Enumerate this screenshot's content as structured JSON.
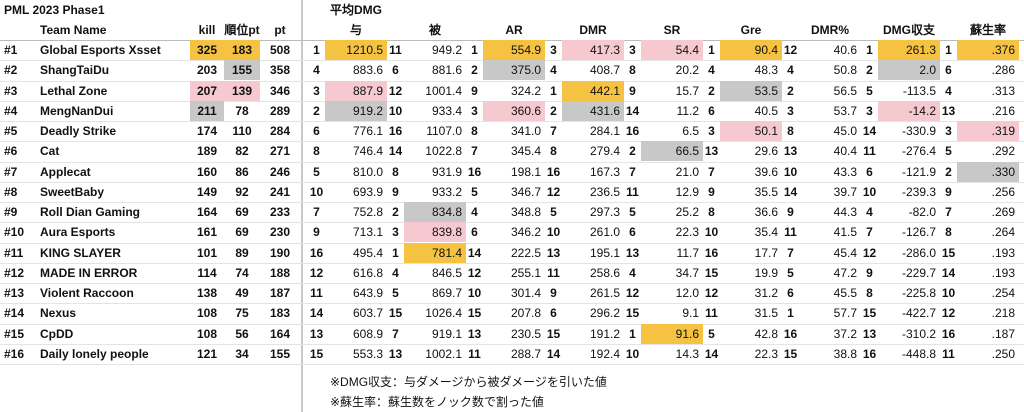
{
  "title": "PML 2023 Phase1",
  "group_title": "平均DMG",
  "left_headers": [
    "Team Name",
    "kill",
    "順位pt",
    "pt"
  ],
  "stat_headers": [
    "与",
    "被",
    "AR",
    "DMR",
    "SR",
    "Gre",
    "DMR%",
    "DMG収支",
    "蘇生率"
  ],
  "highlight_colors": [
    "#f5c242",
    "#c8c8c8",
    "#f6c8d0"
  ],
  "highlight_stats": [
    true,
    true,
    true,
    true,
    true,
    true,
    false,
    true,
    true
  ],
  "rows": [
    {
      "rank": "#1",
      "team": "Global Esports Xsset",
      "kill": 325,
      "rank_pt": 183,
      "pt": 508,
      "stats": [
        [
          1,
          "1210.5"
        ],
        [
          11,
          "949.2"
        ],
        [
          1,
          "554.9"
        ],
        [
          3,
          "417.3"
        ],
        [
          3,
          "54.4"
        ],
        [
          1,
          "90.4"
        ],
        [
          12,
          "40.6"
        ],
        [
          1,
          "261.3"
        ],
        [
          1,
          ".376"
        ]
      ]
    },
    {
      "rank": "#2",
      "team": "ShangTaiDu",
      "kill": 203,
      "rank_pt": 155,
      "pt": 358,
      "stats": [
        [
          4,
          "883.6"
        ],
        [
          6,
          "881.6"
        ],
        [
          2,
          "375.0"
        ],
        [
          4,
          "408.7"
        ],
        [
          8,
          "20.2"
        ],
        [
          4,
          "48.3"
        ],
        [
          4,
          "50.8"
        ],
        [
          2,
          "2.0"
        ],
        [
          6,
          ".286"
        ]
      ]
    },
    {
      "rank": "#3",
      "team": "Lethal Zone",
      "kill": 207,
      "rank_pt": 139,
      "pt": 346,
      "stats": [
        [
          3,
          "887.9"
        ],
        [
          12,
          "1001.4"
        ],
        [
          9,
          "324.2"
        ],
        [
          1,
          "442.1"
        ],
        [
          9,
          "15.7"
        ],
        [
          2,
          "53.5"
        ],
        [
          2,
          "56.5"
        ],
        [
          5,
          "-113.5"
        ],
        [
          4,
          ".313"
        ]
      ]
    },
    {
      "rank": "#4",
      "team": "MengNanDui",
      "kill": 211,
      "rank_pt": 78,
      "pt": 289,
      "stats": [
        [
          2,
          "919.2"
        ],
        [
          10,
          "933.4"
        ],
        [
          3,
          "360.6"
        ],
        [
          2,
          "431.6"
        ],
        [
          14,
          "11.2"
        ],
        [
          6,
          "40.5"
        ],
        [
          3,
          "53.7"
        ],
        [
          3,
          "-14.2"
        ],
        [
          13,
          ".216"
        ]
      ]
    },
    {
      "rank": "#5",
      "team": "Deadly Strike",
      "kill": 174,
      "rank_pt": 110,
      "pt": 284,
      "stats": [
        [
          6,
          "776.1"
        ],
        [
          16,
          "1107.0"
        ],
        [
          8,
          "341.0"
        ],
        [
          7,
          "284.1"
        ],
        [
          16,
          "6.5"
        ],
        [
          3,
          "50.1"
        ],
        [
          8,
          "45.0"
        ],
        [
          14,
          "-330.9"
        ],
        [
          3,
          ".319"
        ]
      ]
    },
    {
      "rank": "#6",
      "team": "Cat",
      "kill": 189,
      "rank_pt": 82,
      "pt": 271,
      "stats": [
        [
          8,
          "746.4"
        ],
        [
          14,
          "1022.8"
        ],
        [
          7,
          "345.4"
        ],
        [
          8,
          "279.4"
        ],
        [
          2,
          "66.5"
        ],
        [
          13,
          "29.6"
        ],
        [
          13,
          "40.4"
        ],
        [
          11,
          "-276.4"
        ],
        [
          5,
          ".292"
        ]
      ]
    },
    {
      "rank": "#7",
      "team": "Applecat",
      "kill": 160,
      "rank_pt": 86,
      "pt": 246,
      "stats": [
        [
          5,
          "810.0"
        ],
        [
          8,
          "931.9"
        ],
        [
          16,
          "198.1"
        ],
        [
          16,
          "167.3"
        ],
        [
          7,
          "21.0"
        ],
        [
          7,
          "39.6"
        ],
        [
          10,
          "43.3"
        ],
        [
          6,
          "-121.9"
        ],
        [
          2,
          ".330"
        ]
      ]
    },
    {
      "rank": "#8",
      "team": "SweetBaby",
      "kill": 149,
      "rank_pt": 92,
      "pt": 241,
      "stats": [
        [
          10,
          "693.9"
        ],
        [
          9,
          "933.2"
        ],
        [
          5,
          "346.7"
        ],
        [
          12,
          "236.5"
        ],
        [
          11,
          "12.9"
        ],
        [
          9,
          "35.5"
        ],
        [
          14,
          "39.7"
        ],
        [
          10,
          "-239.3"
        ],
        [
          9,
          ".256"
        ]
      ]
    },
    {
      "rank": "#9",
      "team": "Roll Dian Gaming",
      "kill": 164,
      "rank_pt": 69,
      "pt": 233,
      "stats": [
        [
          7,
          "752.8"
        ],
        [
          2,
          "834.8"
        ],
        [
          4,
          "348.8"
        ],
        [
          5,
          "297.3"
        ],
        [
          5,
          "25.2"
        ],
        [
          8,
          "36.6"
        ],
        [
          9,
          "44.3"
        ],
        [
          4,
          "-82.0"
        ],
        [
          7,
          ".269"
        ]
      ]
    },
    {
      "rank": "#10",
      "team": "Aura Esports",
      "kill": 161,
      "rank_pt": 69,
      "pt": 230,
      "stats": [
        [
          9,
          "713.1"
        ],
        [
          3,
          "839.8"
        ],
        [
          6,
          "346.2"
        ],
        [
          10,
          "261.0"
        ],
        [
          6,
          "22.3"
        ],
        [
          10,
          "35.4"
        ],
        [
          11,
          "41.5"
        ],
        [
          7,
          "-126.7"
        ],
        [
          8,
          ".264"
        ]
      ]
    },
    {
      "rank": "#11",
      "team": "KING SLAYER",
      "kill": 101,
      "rank_pt": 89,
      "pt": 190,
      "stats": [
        [
          16,
          "495.4"
        ],
        [
          1,
          "781.4"
        ],
        [
          14,
          "222.5"
        ],
        [
          13,
          "195.1"
        ],
        [
          13,
          "11.7"
        ],
        [
          16,
          "17.7"
        ],
        [
          7,
          "45.4"
        ],
        [
          12,
          "-286.0"
        ],
        [
          15,
          ".193"
        ]
      ]
    },
    {
      "rank": "#12",
      "team": "MADE IN ERROR",
      "kill": 114,
      "rank_pt": 74,
      "pt": 188,
      "stats": [
        [
          12,
          "616.8"
        ],
        [
          4,
          "846.5"
        ],
        [
          12,
          "255.1"
        ],
        [
          11,
          "258.6"
        ],
        [
          4,
          "34.7"
        ],
        [
          15,
          "19.9"
        ],
        [
          5,
          "47.2"
        ],
        [
          9,
          "-229.7"
        ],
        [
          14,
          ".193"
        ]
      ]
    },
    {
      "rank": "#13",
      "team": "Violent Raccoon",
      "kill": 138,
      "rank_pt": 49,
      "pt": 187,
      "stats": [
        [
          11,
          "643.9"
        ],
        [
          5,
          "869.7"
        ],
        [
          10,
          "301.4"
        ],
        [
          9,
          "261.5"
        ],
        [
          12,
          "12.0"
        ],
        [
          12,
          "31.2"
        ],
        [
          6,
          "45.5"
        ],
        [
          8,
          "-225.8"
        ],
        [
          10,
          ".254"
        ]
      ]
    },
    {
      "rank": "#14",
      "team": "Nexus",
      "kill": 108,
      "rank_pt": 75,
      "pt": 183,
      "stats": [
        [
          14,
          "603.7"
        ],
        [
          15,
          "1026.4"
        ],
        [
          15,
          "207.8"
        ],
        [
          6,
          "296.2"
        ],
        [
          15,
          "9.1"
        ],
        [
          11,
          "31.5"
        ],
        [
          1,
          "57.7"
        ],
        [
          15,
          "-422.7"
        ],
        [
          12,
          ".218"
        ]
      ]
    },
    {
      "rank": "#15",
      "team": "CpDD",
      "kill": 108,
      "rank_pt": 56,
      "pt": 164,
      "stats": [
        [
          13,
          "608.9"
        ],
        [
          7,
          "919.1"
        ],
        [
          13,
          "230.5"
        ],
        [
          15,
          "191.2"
        ],
        [
          1,
          "91.6"
        ],
        [
          5,
          "42.8"
        ],
        [
          16,
          "37.2"
        ],
        [
          13,
          "-310.2"
        ],
        [
          16,
          ".187"
        ]
      ]
    },
    {
      "rank": "#16",
      "team": "Daily lonely people",
      "kill": 121,
      "rank_pt": 34,
      "pt": 155,
      "stats": [
        [
          15,
          "553.3"
        ],
        [
          13,
          "1002.1"
        ],
        [
          11,
          "288.7"
        ],
        [
          14,
          "192.4"
        ],
        [
          10,
          "14.3"
        ],
        [
          14,
          "22.3"
        ],
        [
          15,
          "38.8"
        ],
        [
          16,
          "-448.8"
        ],
        [
          11,
          ".250"
        ]
      ]
    }
  ],
  "footnotes": [
    "※DMG収支：与ダメージから被ダメージを引いた値",
    "※蘇生率：蘇生数をノック数で割った値"
  ]
}
